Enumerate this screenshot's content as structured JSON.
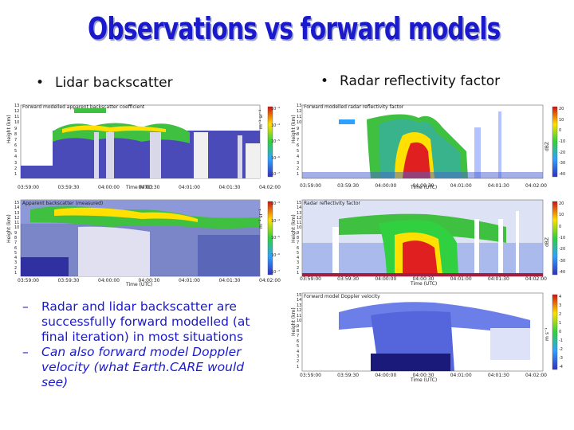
{
  "slide": {
    "title": "Observations vs forward models",
    "left_heading": "Lidar backscatter",
    "right_heading": "Radar reflectivity factor",
    "bullet_symbol": "•",
    "dash_symbol": "–",
    "notes": [
      "Radar and lidar backscatter are successfully forward modelled (at final iteration) in most situations",
      "Can also forward model Doppler velocity (what Earth.CARE would see)"
    ]
  },
  "panels": {
    "lidar_fwd": {
      "title": "Forward modelled apparent backscatter coefficient",
      "ylabel": "Height (km)",
      "xlabel": "Time (UTC)"
    },
    "lidar_obs": {
      "title": "Apparent backscatter (measured)",
      "ylabel": "Height (km)",
      "xlabel": "Time (UTC)"
    },
    "radar_fwd": {
      "title": "Forward modelled radar reflectivity factor",
      "ylabel": "Height (km)",
      "xlabel": "Time (UTC)"
    },
    "radar_obs": {
      "title": "Radar reflectivity factor",
      "ylabel": "Height (km)",
      "xlabel": "Time (UTC)"
    },
    "doppler_fwd": {
      "title": "Forward model Doppler velocity",
      "ylabel": "Height (km)",
      "xlabel": "Time (UTC)"
    }
  },
  "axes": {
    "time_ticks": [
      "03:59:00",
      "03:59:30",
      "04:00:00",
      "04:00:30",
      "04:01:00",
      "04:01:30",
      "04:02:00"
    ],
    "height_ticks": [
      "1",
      "2",
      "3",
      "4",
      "5",
      "6",
      "7",
      "8",
      "9",
      "10",
      "11",
      "12",
      "13",
      "14",
      "15"
    ],
    "lidar_colorbar": [
      "10⁻³",
      "10⁻⁴",
      "10⁻⁵",
      "10⁻⁶",
      "10⁻⁷"
    ],
    "radar_colorbar": [
      "20",
      "10",
      "0",
      "-10",
      "-20",
      "-30",
      "-40"
    ],
    "doppler_colorbar": [
      "4",
      "3",
      "2",
      "1",
      "0",
      "-1",
      "-2",
      "-3",
      "-4"
    ],
    "lidar_unit": "m⁻¹ sr⁻¹",
    "radar_unit": "dBZ",
    "doppler_unit": "m s⁻¹"
  },
  "colors": {
    "title": "#1a1acc",
    "notes": "#1a1acc"
  }
}
